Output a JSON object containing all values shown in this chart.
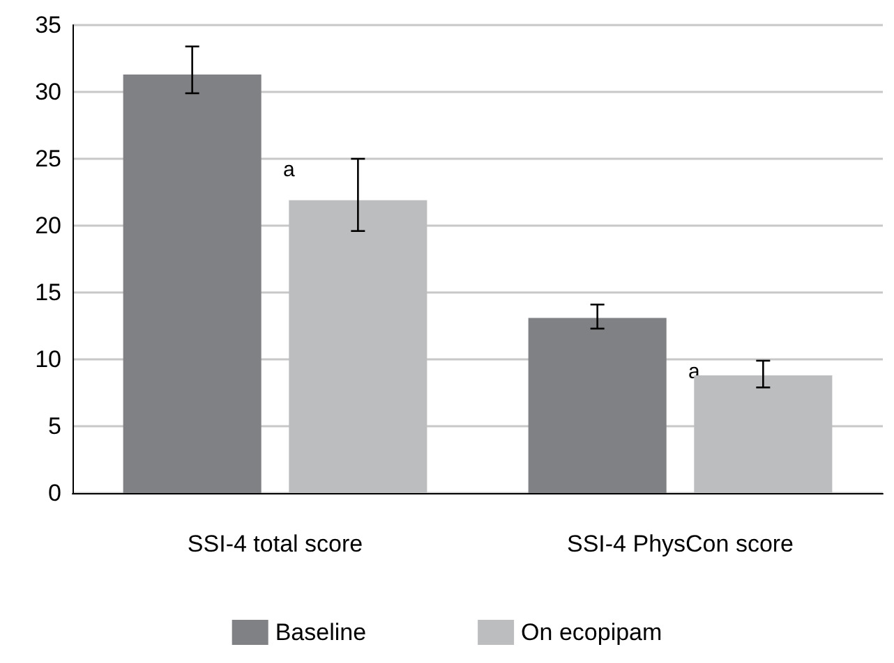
{
  "chart_data": {
    "type": "bar",
    "categories": [
      "SSI-4 total score",
      "SSI-4 PhysCon score"
    ],
    "series": [
      {
        "name": "Baseline",
        "color": "#808184",
        "values": [
          31.3,
          13.1
        ],
        "errors": [
          [
            29.9,
            33.4
          ],
          [
            12.3,
            14.1
          ]
        ]
      },
      {
        "name": "On ecopipam",
        "color": "#bcbdbf",
        "values": [
          21.9,
          8.8
        ],
        "errors": [
          [
            19.6,
            25.0
          ],
          [
            7.9,
            9.9
          ]
        ]
      }
    ],
    "annotations": [
      "a",
      "a"
    ],
    "ylim": [
      0,
      35
    ],
    "yticks": [
      0,
      5,
      10,
      15,
      20,
      25,
      30,
      35
    ],
    "grid": "y",
    "legend": "bottom"
  }
}
